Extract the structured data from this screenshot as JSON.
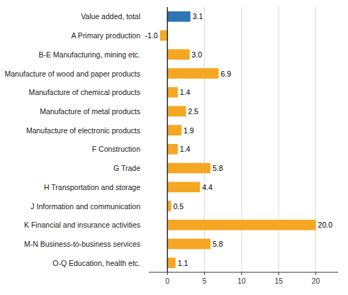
{
  "chart_data": {
    "type": "bar",
    "orientation": "horizontal",
    "categories": [
      "O-Q Education, health etc.",
      "M-N Business-to-business services",
      "K Financial and insurance activities",
      "J Information and communication",
      "H Transportation and storage",
      "G Trade",
      "F Construction",
      "Manufacture of electronic products",
      "Manufacture of metal products",
      "Manufacture of chemical products",
      "Manufacture of wood and paper products",
      "B-E Manufacturing, mining etc.",
      "A Primary production",
      "Value added, total"
    ],
    "values": [
      1.1,
      5.8,
      20.0,
      0.5,
      4.4,
      5.8,
      1.4,
      1.9,
      2.5,
      1.4,
      6.9,
      3.0,
      -1.0,
      3.1
    ],
    "value_labels": [
      "1.1",
      "5.8",
      "20.0",
      "0.5",
      "4.4",
      "5.8",
      "1.4",
      "1.9",
      "2.5",
      "1.4",
      "6.9",
      "3.0",
      "-1.0",
      "3.1"
    ],
    "colors": [
      "#f5a623",
      "#f5a623",
      "#f5a623",
      "#f5a623",
      "#f5a623",
      "#f5a623",
      "#f5a623",
      "#f5a623",
      "#f5a623",
      "#f5a623",
      "#f5a623",
      "#f5a623",
      "#f5a623",
      "#2e75b6"
    ],
    "xlim": [
      -2.5,
      23
    ],
    "xticks": [
      0,
      5,
      10,
      15,
      20
    ],
    "grid": true,
    "data_labels": true
  }
}
